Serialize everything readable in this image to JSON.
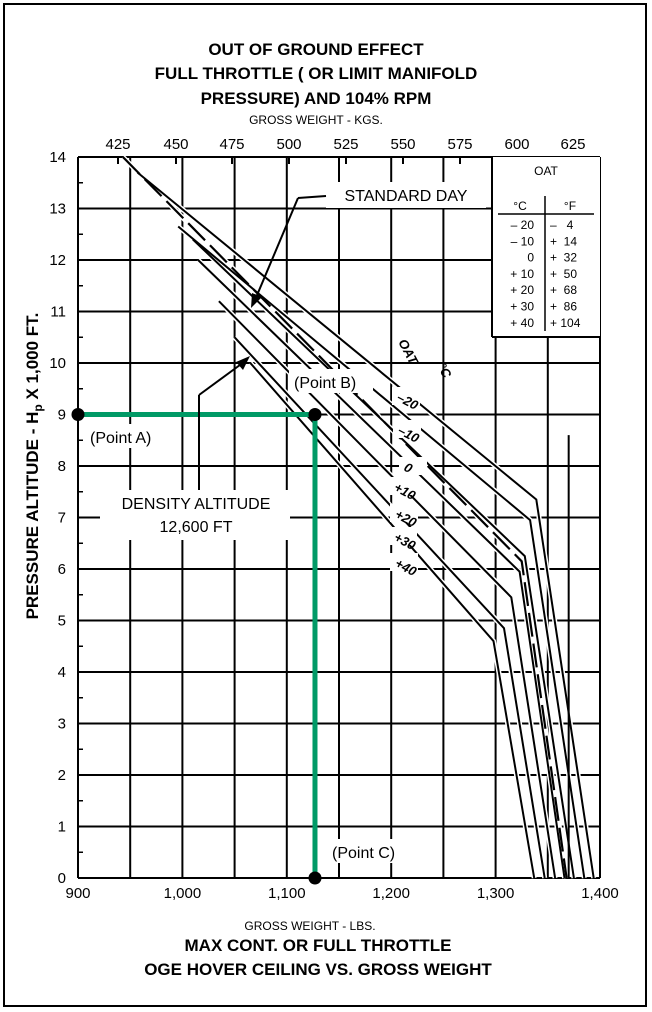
{
  "chart_data": {
    "type": "line",
    "title": [
      "OUT OF GROUND EFFECT",
      "FULL THROTTLE ( OR LIMIT MANIFOLD",
      "PRESSURE) AND 104% RPM"
    ],
    "top_axis_label": "GROSS WEIGHT - KGS.",
    "top_ticks": [
      "425",
      "450",
      "475",
      "500",
      "525",
      "550",
      "575",
      "600",
      "625"
    ],
    "xlabel": "GROSS WEIGHT - LBS.",
    "x_ticks": [
      "900",
      "1,000",
      "1,100",
      "1,200",
      "1,300",
      "1,400"
    ],
    "ylabel_parts": [
      "PRESSURE ALTITUDE - H",
      "p",
      " X 1,000 FT."
    ],
    "y_ticks": [
      "0",
      "1",
      "2",
      "3",
      "4",
      "5",
      "6",
      "7",
      "8",
      "9",
      "10",
      "11",
      "12",
      "13",
      "14"
    ],
    "xlim": [
      900,
      1400
    ],
    "ylim": [
      0,
      14
    ],
    "grid": true,
    "bottom_title": [
      "MAX CONT. OR FULL THROTTLE",
      "OGE HOVER CEILING VS. GROSS WEIGHT"
    ],
    "oat_table": {
      "header": "OAT",
      "c_header": "°C",
      "f_header": "°F",
      "rows": [
        {
          "c": "– 20",
          "f": "–   4"
        },
        {
          "c": "– 10",
          "f": "+  14"
        },
        {
          "c": "0",
          "f": "+  32"
        },
        {
          "c": "+ 10",
          "f": "+  50"
        },
        {
          "c": "+ 20",
          "f": "+  68"
        },
        {
          "c": "+ 30",
          "f": "+  86"
        },
        {
          "c": "+ 40",
          "f": "+ 104"
        }
      ]
    },
    "curve_header": [
      "OAT",
      "°C"
    ],
    "series": [
      {
        "name": "–20",
        "points": [
          [
            957,
            13.7
          ],
          [
            1339,
            7.35
          ],
          [
            1394,
            0
          ]
        ]
      },
      {
        "name": "–10",
        "points": [
          [
            996,
            12.65
          ],
          [
            1333,
            6.95
          ],
          [
            1385,
            0
          ]
        ]
      },
      {
        "name": "0",
        "points": [
          [
            1010,
            12.4
          ],
          [
            1328,
            6.25
          ],
          [
            1375,
            0
          ]
        ]
      },
      {
        "name": "+10",
        "points": [
          [
            1015,
            12.0
          ],
          [
            1323,
            5.95
          ],
          [
            1366,
            0
          ]
        ]
      },
      {
        "name": "+20",
        "points": [
          [
            1035,
            11.2
          ],
          [
            1315,
            5.45
          ],
          [
            1357,
            0
          ]
        ]
      },
      {
        "name": "+30",
        "points": [
          [
            1050,
            10.5
          ],
          [
            1308,
            4.85
          ],
          [
            1347,
            0
          ]
        ]
      },
      {
        "name": "+40",
        "points": [
          [
            1065,
            10.0
          ],
          [
            1298,
            4.6
          ],
          [
            1337,
            0
          ]
        ]
      }
    ],
    "standard_day": {
      "label": "STANDARD DAY",
      "points": [
        [
          943,
          14.0
        ],
        [
          1325,
          6.15
        ],
        [
          1368,
          0
        ]
      ]
    },
    "stub_line": {
      "x": 1370,
      "y_from": 0,
      "y_to": 8.6
    },
    "example": {
      "point_a": {
        "label": "(Point A)",
        "x": 900,
        "y": 9
      },
      "point_b": {
        "label": "(Point B)",
        "x": 1127,
        "y": 9
      },
      "point_c": {
        "label": "(Point C)",
        "x": 1127,
        "y": 0
      },
      "color": "#009a66"
    },
    "density_altitude": {
      "line1": "DENSITY ALTITUDE",
      "line2": "12,600 FT"
    }
  }
}
